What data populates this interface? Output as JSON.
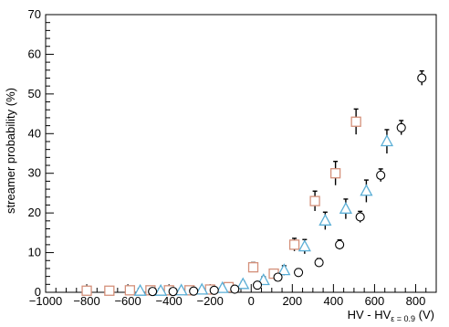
{
  "chart_data": {
    "type": "scatter",
    "title": "",
    "xlabel": "HV - HV",
    "xlabel_subscript": "ε = 0.9",
    "xlabel_unit": "(V)",
    "ylabel": "streamer probability (%)",
    "xlim": [
      -1000,
      900
    ],
    "ylim": [
      0,
      70
    ],
    "x_ticks": [
      -1000,
      -800,
      -600,
      -400,
      -200,
      0,
      200,
      400,
      600,
      800
    ],
    "y_ticks": [
      0,
      10,
      20,
      30,
      40,
      50,
      60,
      70
    ],
    "grid": false,
    "legend": "none",
    "series": [
      {
        "marker": "square",
        "color": "#d4907a",
        "points": [
          {
            "x": -800,
            "y": 0.4,
            "err": 0.4
          },
          {
            "x": -690,
            "y": 0.4,
            "err": 0.4
          },
          {
            "x": -590,
            "y": 0.5,
            "err": 0.4
          },
          {
            "x": -490,
            "y": 0.5,
            "err": 0.4
          },
          {
            "x": -400,
            "y": 0.5,
            "err": 0.4
          },
          {
            "x": -300,
            "y": 0.5,
            "err": 0.4
          },
          {
            "x": -200,
            "y": 0.7,
            "err": 0.5
          },
          {
            "x": -110,
            "y": 1.3,
            "err": 0.6
          },
          {
            "x": 10,
            "y": 6.3,
            "err": 1.2
          },
          {
            "x": 110,
            "y": 4.7,
            "err": 1.0
          },
          {
            "x": 210,
            "y": 12.0,
            "err": 1.6
          },
          {
            "x": 310,
            "y": 23.0,
            "err": 2.5
          },
          {
            "x": 410,
            "y": 30.0,
            "err": 3.0
          },
          {
            "x": 510,
            "y": 43.0,
            "err": 3.2
          }
        ]
      },
      {
        "marker": "triangle",
        "color": "#5aaed6",
        "points": [
          {
            "x": -540,
            "y": 0.3,
            "err": 0.3
          },
          {
            "x": -440,
            "y": 0.3,
            "err": 0.3
          },
          {
            "x": -340,
            "y": 0.4,
            "err": 0.3
          },
          {
            "x": -240,
            "y": 0.6,
            "err": 0.4
          },
          {
            "x": -140,
            "y": 1.0,
            "err": 0.5
          },
          {
            "x": -40,
            "y": 2.0,
            "err": 0.7
          },
          {
            "x": 60,
            "y": 3.0,
            "err": 0.9
          },
          {
            "x": 160,
            "y": 5.5,
            "err": 1.2
          },
          {
            "x": 260,
            "y": 11.5,
            "err": 1.8
          },
          {
            "x": 360,
            "y": 18.0,
            "err": 2.2
          },
          {
            "x": 460,
            "y": 21.0,
            "err": 2.5
          },
          {
            "x": 560,
            "y": 25.5,
            "err": 2.8
          },
          {
            "x": 660,
            "y": 38.0,
            "err": 3.0
          }
        ]
      },
      {
        "marker": "circle",
        "color": "#000000",
        "points": [
          {
            "x": -480,
            "y": 0.2,
            "err": 0.2
          },
          {
            "x": -380,
            "y": 0.2,
            "err": 0.2
          },
          {
            "x": -280,
            "y": 0.3,
            "err": 0.3
          },
          {
            "x": -180,
            "y": 0.5,
            "err": 0.3
          },
          {
            "x": -80,
            "y": 0.8,
            "err": 0.4
          },
          {
            "x": 30,
            "y": 1.8,
            "err": 0.6
          },
          {
            "x": 130,
            "y": 3.8,
            "err": 0.8
          },
          {
            "x": 230,
            "y": 5.0,
            "err": 0.9
          },
          {
            "x": 330,
            "y": 7.5,
            "err": 1.0
          },
          {
            "x": 430,
            "y": 12.0,
            "err": 1.2
          },
          {
            "x": 530,
            "y": 19.0,
            "err": 1.4
          },
          {
            "x": 630,
            "y": 29.5,
            "err": 1.6
          },
          {
            "x": 730,
            "y": 41.5,
            "err": 1.8
          },
          {
            "x": 830,
            "y": 54.0,
            "err": 1.8
          }
        ]
      }
    ]
  }
}
